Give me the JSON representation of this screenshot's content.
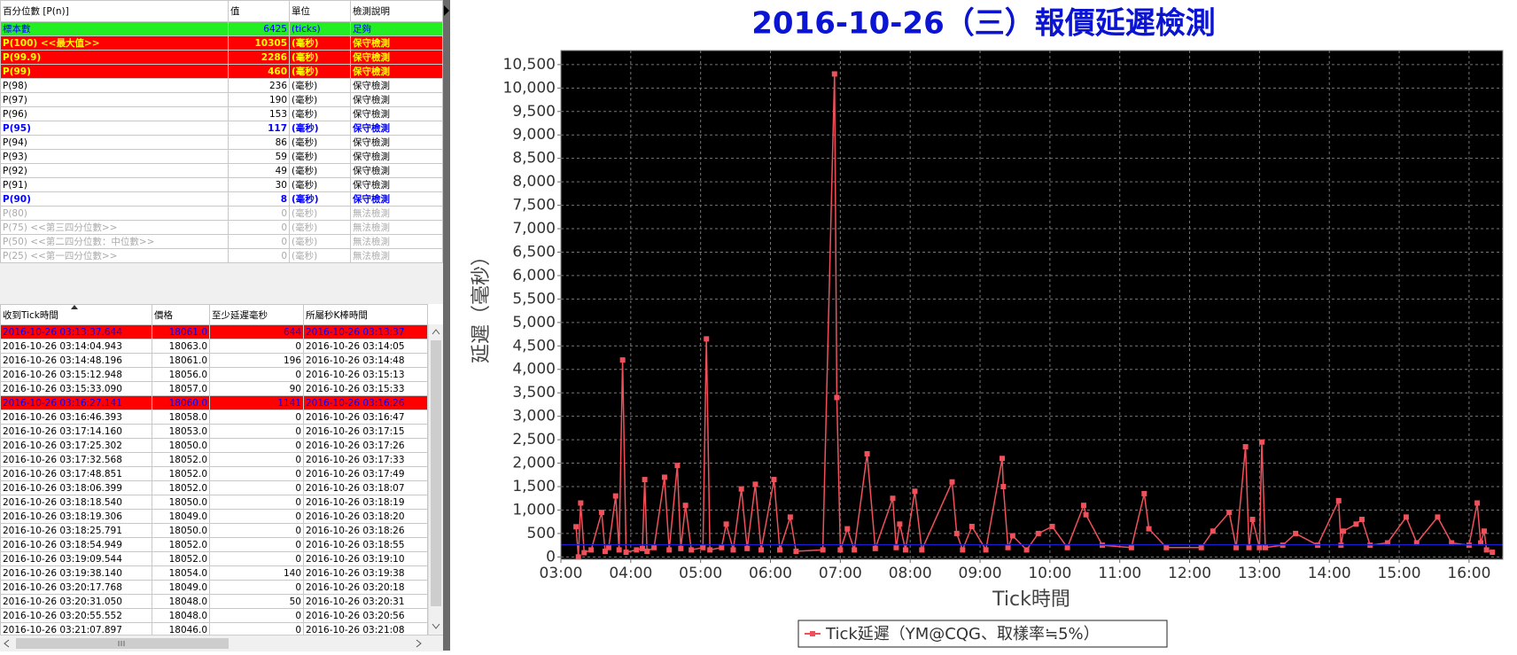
{
  "percentile_table": {
    "headers": [
      "百分位數 [P(n)]",
      "值",
      "單位",
      "檢測說明"
    ],
    "rows": [
      {
        "cells": [
          "標本數",
          6425,
          "(ticks)",
          "足夠"
        ],
        "style": "ok"
      },
      {
        "cells": [
          "P(100)  <<最大值>>",
          10305,
          "(毫秒)",
          "保守檢測"
        ],
        "style": "alert"
      },
      {
        "cells": [
          "P(99.9)",
          2286,
          "(毫秒)",
          "保守檢測"
        ],
        "style": "alert"
      },
      {
        "cells": [
          "P(99)",
          460,
          "(毫秒)",
          "保守檢測"
        ],
        "style": "alert"
      },
      {
        "cells": [
          "P(98)",
          236,
          "(毫秒)",
          "保守檢測"
        ],
        "style": "normal"
      },
      {
        "cells": [
          "P(97)",
          190,
          "(毫秒)",
          "保守檢測"
        ],
        "style": "normal"
      },
      {
        "cells": [
          "P(96)",
          153,
          "(毫秒)",
          "保守檢測"
        ],
        "style": "normal"
      },
      {
        "cells": [
          "P(95)",
          117,
          "(毫秒)",
          "保守檢測"
        ],
        "style": "focus"
      },
      {
        "cells": [
          "P(94)",
          86,
          "(毫秒)",
          "保守檢測"
        ],
        "style": "normal"
      },
      {
        "cells": [
          "P(93)",
          59,
          "(毫秒)",
          "保守檢測"
        ],
        "style": "normal"
      },
      {
        "cells": [
          "P(92)",
          49,
          "(毫秒)",
          "保守檢測"
        ],
        "style": "normal"
      },
      {
        "cells": [
          "P(91)",
          30,
          "(毫秒)",
          "保守檢測"
        ],
        "style": "normal"
      },
      {
        "cells": [
          "P(90)",
          8,
          "(毫秒)",
          "保守檢測"
        ],
        "style": "focus"
      },
      {
        "cells": [
          "P(80)",
          0,
          "(毫秒)",
          "無法檢測"
        ],
        "style": "na"
      },
      {
        "cells": [
          "P(75)  <<第三四分位數>>",
          0,
          "(毫秒)",
          "無法檢測"
        ],
        "style": "na"
      },
      {
        "cells": [
          "P(50)  <<第二四分位數：中位數>>",
          0,
          "(毫秒)",
          "無法檢測"
        ],
        "style": "na"
      },
      {
        "cells": [
          "P(25)  <<第一四分位數>>",
          0,
          "(毫秒)",
          "無法檢測"
        ],
        "style": "na"
      }
    ]
  },
  "tick_table": {
    "headers": [
      "收到Tick時間",
      "價格",
      "至少延遲毫秒",
      "所屬秒K棒時間"
    ],
    "rows": [
      {
        "cells": [
          "2016-10-26 03:13:37.644",
          "18061.0",
          644,
          "2016-10-26 03:13:37"
        ],
        "highlight": true
      },
      {
        "cells": [
          "2016-10-26 03:14:04.943",
          "18063.0",
          0,
          "2016-10-26 03:14:05"
        ],
        "highlight": false
      },
      {
        "cells": [
          "2016-10-26 03:14:48.196",
          "18061.0",
          196,
          "2016-10-26 03:14:48"
        ],
        "highlight": false
      },
      {
        "cells": [
          "2016-10-26 03:15:12.948",
          "18056.0",
          0,
          "2016-10-26 03:15:13"
        ],
        "highlight": false
      },
      {
        "cells": [
          "2016-10-26 03:15:33.090",
          "18057.0",
          90,
          "2016-10-26 03:15:33"
        ],
        "highlight": false
      },
      {
        "cells": [
          "2016-10-26 03:16:27.141",
          "18060.0",
          1141,
          "2016-10-26 03:16:26"
        ],
        "highlight": true
      },
      {
        "cells": [
          "2016-10-26 03:16:46.393",
          "18058.0",
          0,
          "2016-10-26 03:16:47"
        ],
        "highlight": false
      },
      {
        "cells": [
          "2016-10-26 03:17:14.160",
          "18053.0",
          0,
          "2016-10-26 03:17:15"
        ],
        "highlight": false
      },
      {
        "cells": [
          "2016-10-26 03:17:25.302",
          "18050.0",
          0,
          "2016-10-26 03:17:26"
        ],
        "highlight": false
      },
      {
        "cells": [
          "2016-10-26 03:17:32.568",
          "18052.0",
          0,
          "2016-10-26 03:17:33"
        ],
        "highlight": false
      },
      {
        "cells": [
          "2016-10-26 03:17:48.851",
          "18052.0",
          0,
          "2016-10-26 03:17:49"
        ],
        "highlight": false
      },
      {
        "cells": [
          "2016-10-26 03:18:06.399",
          "18052.0",
          0,
          "2016-10-26 03:18:07"
        ],
        "highlight": false
      },
      {
        "cells": [
          "2016-10-26 03:18:18.540",
          "18050.0",
          0,
          "2016-10-26 03:18:19"
        ],
        "highlight": false
      },
      {
        "cells": [
          "2016-10-26 03:18:19.306",
          "18049.0",
          0,
          "2016-10-26 03:18:20"
        ],
        "highlight": false
      },
      {
        "cells": [
          "2016-10-26 03:18:25.791",
          "18050.0",
          0,
          "2016-10-26 03:18:26"
        ],
        "highlight": false
      },
      {
        "cells": [
          "2016-10-26 03:18:54.949",
          "18052.0",
          0,
          "2016-10-26 03:18:55"
        ],
        "highlight": false
      },
      {
        "cells": [
          "2016-10-26 03:19:09.544",
          "18052.0",
          0,
          "2016-10-26 03:19:10"
        ],
        "highlight": false
      },
      {
        "cells": [
          "2016-10-26 03:19:38.140",
          "18054.0",
          140,
          "2016-10-26 03:19:38"
        ],
        "highlight": false
      },
      {
        "cells": [
          "2016-10-26 03:20:17.768",
          "18049.0",
          0,
          "2016-10-26 03:20:18"
        ],
        "highlight": false
      },
      {
        "cells": [
          "2016-10-26 03:20:31.050",
          "18048.0",
          50,
          "2016-10-26 03:20:31"
        ],
        "highlight": false
      },
      {
        "cells": [
          "2016-10-26 03:20:55.552",
          "18048.0",
          0,
          "2016-10-26 03:20:56"
        ],
        "highlight": false
      },
      {
        "cells": [
          "2016-10-26 03:21:07.897",
          "18046.0",
          0,
          "2016-10-26 03:21:08"
        ],
        "highlight": false
      }
    ]
  },
  "chart_data": {
    "type": "line",
    "title": "2016-10-26（三）報價延遲檢測",
    "x_label": "Tick時間",
    "y_label": "延遲（毫秒）",
    "x": [
      "03:13",
      "03:15",
      "03:17",
      "03:20",
      "03:26",
      "03:35",
      "03:38",
      "03:41",
      "03:47",
      "03:50",
      "03:53",
      "03:56",
      "04:05",
      "04:10",
      "04:12",
      "04:14",
      "04:20",
      "04:29",
      "04:33",
      "04:40",
      "04:43",
      "04:47",
      "04:52",
      "05:02",
      "05:05",
      "05:08",
      "05:18",
      "05:22",
      "05:28",
      "05:35",
      "05:40",
      "05:47",
      "05:52",
      "06:03",
      "06:08",
      "06:17",
      "06:22",
      "06:45",
      "06:55",
      "06:57",
      "07:00",
      "07:06",
      "07:12",
      "07:23",
      "07:30",
      "07:45",
      "07:48",
      "07:51",
      "07:56",
      "08:04",
      "08:10",
      "08:36",
      "08:40",
      "08:45",
      "08:53",
      "09:05",
      "09:19",
      "09:20",
      "09:24",
      "09:28",
      "09:40",
      "09:50",
      "10:02",
      "10:15",
      "10:29",
      "10:31",
      "10:45",
      "11:10",
      "11:21",
      "11:25",
      "11:40",
      "12:10",
      "12:20",
      "12:34",
      "12:40",
      "12:48",
      "12:51",
      "12:54",
      "13:00",
      "13:02",
      "13:05",
      "13:20",
      "13:31",
      "13:50",
      "14:08",
      "14:10",
      "14:12",
      "14:23",
      "14:28",
      "14:35",
      "14:50",
      "15:06",
      "15:15",
      "15:33",
      "15:45",
      "16:00",
      "16:07",
      "16:10",
      "16:13",
      "16:15",
      "16:20"
    ],
    "series": [
      {
        "name": "Tick延遲（YM@CQG、取樣率≒5%）",
        "color": "#f0505a",
        "values": [
          644,
          0,
          1150,
          90,
          150,
          950,
          120,
          200,
          1300,
          150,
          4200,
          100,
          150,
          180,
          1650,
          120,
          200,
          1700,
          150,
          1950,
          180,
          1100,
          150,
          200,
          4650,
          150,
          200,
          700,
          150,
          1450,
          180,
          1550,
          150,
          1650,
          150,
          850,
          120,
          150,
          10300,
          3400,
          150,
          600,
          150,
          2200,
          180,
          1250,
          200,
          700,
          150,
          1400,
          150,
          1600,
          500,
          150,
          650,
          150,
          2100,
          1500,
          200,
          450,
          150,
          500,
          650,
          200,
          1100,
          900,
          250,
          200,
          1350,
          600,
          200,
          200,
          550,
          950,
          200,
          2350,
          200,
          800,
          200,
          2450,
          200,
          250,
          500,
          250,
          1200,
          250,
          550,
          700,
          800,
          250,
          300,
          850,
          300,
          850,
          300,
          250,
          1150,
          300,
          550,
          150,
          100
        ]
      }
    ],
    "hline": {
      "value": 260,
      "color": "#1c1cc8"
    },
    "xlim": [
      "03:00",
      "16:29"
    ],
    "xticks": [
      "03:00",
      "04:00",
      "05:00",
      "06:00",
      "07:00",
      "08:00",
      "09:00",
      "10:00",
      "11:00",
      "12:00",
      "13:00",
      "14:00",
      "15:00",
      "16:00"
    ],
    "ylim": [
      -50,
      10800
    ],
    "yticks": [
      0,
      500,
      {
        "value": 1000,
        "label": "1,000"
      },
      {
        "value": 1500,
        "label": "1,500"
      },
      {
        "value": 2000,
        "label": "2,000"
      },
      {
        "value": 2500,
        "label": "2,500"
      },
      {
        "value": 3000,
        "label": "3,000"
      },
      {
        "value": 3500,
        "label": "3,500"
      },
      {
        "value": 4000,
        "label": "4,000"
      },
      {
        "value": 4500,
        "label": "4,500"
      },
      {
        "value": 5000,
        "label": "5,000"
      },
      {
        "value": 5500,
        "label": "5,500"
      },
      {
        "value": 6000,
        "label": "6,000"
      },
      {
        "value": 6500,
        "label": "6,500"
      },
      {
        "value": 7000,
        "label": "7,000"
      },
      {
        "value": 7500,
        "label": "7,500"
      },
      {
        "value": 8000,
        "label": "8,000"
      },
      {
        "value": 8500,
        "label": "8,500"
      },
      {
        "value": 9000,
        "label": "9,000"
      },
      {
        "value": 9500,
        "label": "9,500"
      },
      {
        "value": 10000,
        "label": "10,000"
      },
      {
        "value": 10500,
        "label": "10,500"
      }
    ],
    "grid": true,
    "legend": "bottom"
  }
}
